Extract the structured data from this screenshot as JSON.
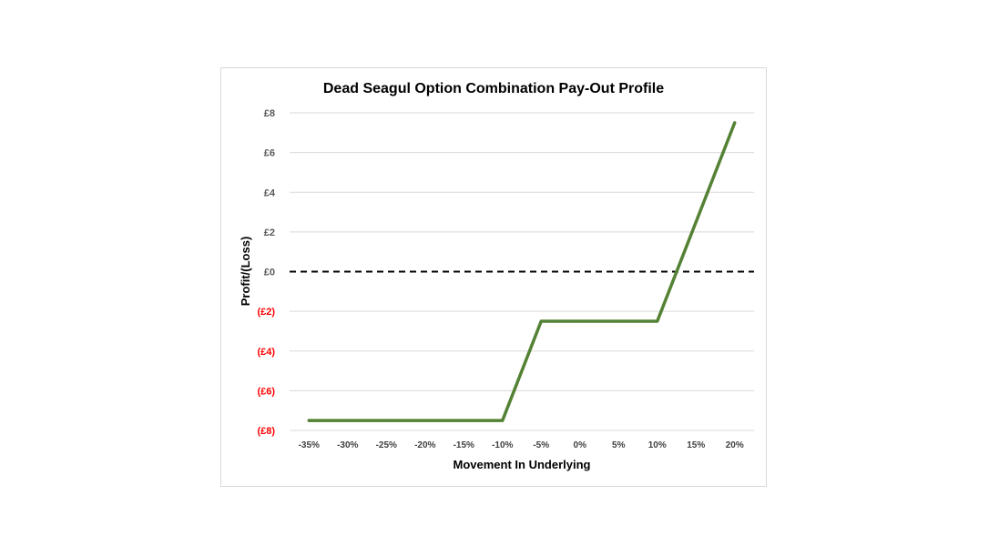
{
  "chart_data": {
    "type": "line",
    "title": "Dead Seagul Option Combination Pay-Out Profile",
    "xlabel": "Movement In Underlying",
    "ylabel": "Profit/(Loss)",
    "categories": [
      "-35%",
      "-30%",
      "-25%",
      "-20%",
      "-15%",
      "-10%",
      "-5%",
      "0%",
      "5%",
      "10%",
      "15%",
      "20%"
    ],
    "x": [
      -35,
      -30,
      -25,
      -20,
      -15,
      -10,
      -5,
      0,
      5,
      10,
      15,
      20
    ],
    "series": [
      {
        "values": [
          -7.5,
          -7.5,
          -7.5,
          -7.5,
          -7.5,
          -7.5,
          -2.5,
          -2.5,
          -2.5,
          -2.5,
          2.5,
          7.5
        ]
      }
    ],
    "ylim": [
      -8,
      8
    ],
    "yticks": [
      {
        "value": 8,
        "label": "£8"
      },
      {
        "value": 6,
        "label": "£6"
      },
      {
        "value": 4,
        "label": "£4"
      },
      {
        "value": 2,
        "label": "£2"
      },
      {
        "value": 0,
        "label": "£0"
      },
      {
        "value": -2,
        "label": "(£2)"
      },
      {
        "value": -4,
        "label": "(£4)"
      },
      {
        "value": -6,
        "label": "(£6)"
      },
      {
        "value": -8,
        "label": "(£8)"
      }
    ],
    "grid": true,
    "zero_line": "dashed",
    "colors": {
      "line": "#548235",
      "grid": "#d9d9d9",
      "positive_tick": "#595959",
      "negative_tick": "#ff0000",
      "zero_line": "#000000"
    }
  }
}
